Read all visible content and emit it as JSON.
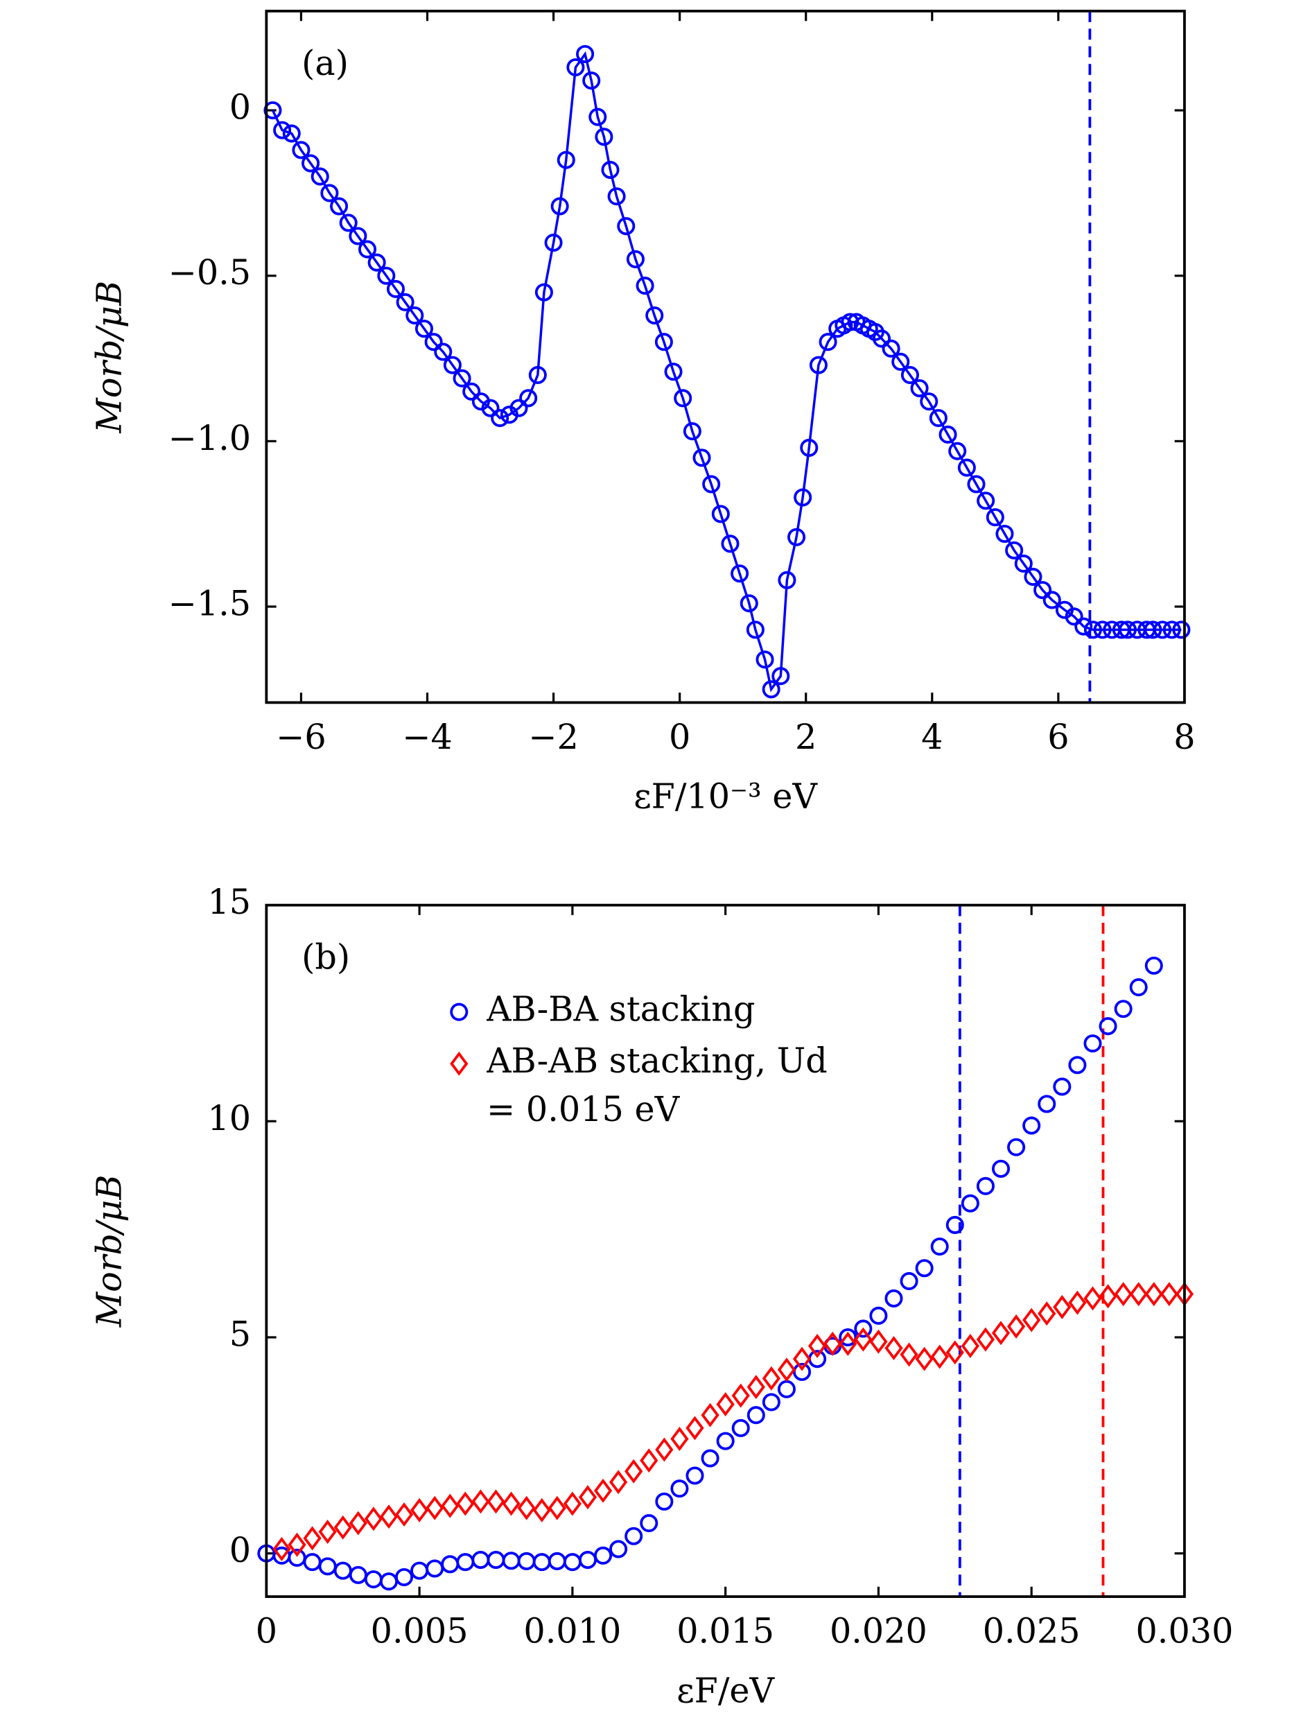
{
  "chart_data": [
    {
      "type": "line",
      "panel_label": "(a)",
      "xlabel": "εF/10⁻³ eV",
      "ylabel": "Morb/μB",
      "xlim": [
        -6.55,
        8
      ],
      "ylim": [
        -1.79,
        0.3
      ],
      "xticks": [
        {
          "value": -6,
          "label": "−6"
        },
        {
          "value": -4,
          "label": "−4"
        },
        {
          "value": -2,
          "label": "−2"
        },
        0,
        2,
        4,
        6,
        8
      ],
      "yticks": [
        0,
        {
          "value": -0.5,
          "label": "−0.5"
        },
        {
          "value": -1,
          "label": "−1.0"
        },
        {
          "value": -1.5,
          "label": "−1.5"
        }
      ],
      "vlines": [
        {
          "x": 6.5,
          "color": "#0000ff"
        }
      ],
      "series": [
        {
          "color": "#0000ff",
          "marker": "o",
          "line": true,
          "x": [
            -6.45,
            -6.3,
            -6.15,
            -6.0,
            -5.85,
            -5.7,
            -5.55,
            -5.4,
            -5.25,
            -5.1,
            -4.95,
            -4.8,
            -4.65,
            -4.5,
            -4.35,
            -4.2,
            -4.05,
            -3.9,
            -3.75,
            -3.6,
            -3.45,
            -3.3,
            -3.15,
            -3.0,
            -2.85,
            -2.7,
            -2.55,
            -2.4,
            -2.25,
            -2.15,
            -2.0,
            -1.9,
            -1.8,
            -1.65,
            -1.5,
            -1.4,
            -1.3,
            -1.2,
            -1.1,
            -1.0,
            -0.85,
            -0.7,
            -0.55,
            -0.4,
            -0.25,
            -0.1,
            0.05,
            0.2,
            0.35,
            0.5,
            0.65,
            0.8,
            0.95,
            1.1,
            1.2,
            1.35,
            1.45,
            1.6,
            1.7,
            1.85,
            1.95,
            2.05,
            2.2,
            2.35,
            2.5,
            2.6,
            2.7,
            2.8,
            2.9,
            3.0,
            3.1,
            3.2,
            3.35,
            3.5,
            3.65,
            3.8,
            3.95,
            4.1,
            4.25,
            4.4,
            4.55,
            4.7,
            4.85,
            5.0,
            5.15,
            5.3,
            5.45,
            5.6,
            5.75,
            5.9,
            6.1,
            6.25,
            6.4,
            6.55,
            6.7,
            6.85,
            7.0,
            7.1,
            7.25,
            7.4,
            7.5,
            7.65,
            7.8,
            7.95
          ],
          "values": [
            0.0,
            -0.06,
            -0.07,
            -0.12,
            -0.16,
            -0.2,
            -0.25,
            -0.29,
            -0.34,
            -0.38,
            -0.42,
            -0.46,
            -0.5,
            -0.54,
            -0.58,
            -0.62,
            -0.66,
            -0.7,
            -0.73,
            -0.77,
            -0.81,
            -0.85,
            -0.88,
            -0.9,
            -0.93,
            -0.92,
            -0.9,
            -0.87,
            -0.8,
            -0.55,
            -0.4,
            -0.29,
            -0.15,
            0.13,
            0.17,
            0.09,
            -0.02,
            -0.08,
            -0.18,
            -0.26,
            -0.35,
            -0.45,
            -0.53,
            -0.62,
            -0.7,
            -0.79,
            -0.87,
            -0.97,
            -1.05,
            -1.13,
            -1.22,
            -1.31,
            -1.4,
            -1.49,
            -1.57,
            -1.66,
            -1.75,
            -1.71,
            -1.42,
            -1.29,
            -1.17,
            -1.02,
            -0.77,
            -0.7,
            -0.66,
            -0.65,
            -0.64,
            -0.64,
            -0.65,
            -0.66,
            -0.67,
            -0.69,
            -0.72,
            -0.76,
            -0.8,
            -0.84,
            -0.88,
            -0.93,
            -0.98,
            -1.03,
            -1.08,
            -1.13,
            -1.18,
            -1.23,
            -1.28,
            -1.33,
            -1.37,
            -1.41,
            -1.45,
            -1.48,
            -1.51,
            -1.53,
            -1.56,
            -1.57,
            -1.57,
            -1.57,
            -1.57,
            -1.57,
            -1.57,
            -1.57,
            -1.57,
            -1.57,
            -1.57,
            -1.57
          ]
        }
      ]
    },
    {
      "type": "scatter",
      "panel_label": "(b)",
      "xlabel": "εF/eV",
      "ylabel": "Morb/μB",
      "xlim": [
        0,
        0.03
      ],
      "ylim": [
        -1,
        15
      ],
      "xticks": [
        0,
        0.005,
        {
          "value": 0.01,
          "label": "0.010"
        },
        0.015,
        {
          "value": 0.02,
          "label": "0.020"
        },
        0.025,
        {
          "value": 0.03,
          "label": "0.030"
        }
      ],
      "yticks": [
        0,
        5,
        10,
        15
      ],
      "vlines": [
        {
          "x": 0.02266,
          "color": "#0000ff"
        },
        {
          "x": 0.02734,
          "color": "#ff0000"
        }
      ],
      "series": [
        {
          "name": "AB-BA stacking",
          "color": "#0000ff",
          "marker": "o",
          "x": [
            0,
            0.0005,
            0.001,
            0.0015,
            0.002,
            0.0025,
            0.003,
            0.0035,
            0.004,
            0.0045,
            0.005,
            0.0055,
            0.006,
            0.0065,
            0.007,
            0.0075,
            0.008,
            0.0085,
            0.009,
            0.0095,
            0.01,
            0.0105,
            0.011,
            0.0115,
            0.012,
            0.0125,
            0.013,
            0.0135,
            0.014,
            0.0145,
            0.015,
            0.0155,
            0.016,
            0.0165,
            0.017,
            0.0175,
            0.018,
            0.0185,
            0.019,
            0.0195,
            0.02,
            0.0205,
            0.021,
            0.0215,
            0.022,
            0.0225,
            0.023,
            0.0235,
            0.024,
            0.0245,
            0.025,
            0.0255,
            0.026,
            0.0265,
            0.027,
            0.0275,
            0.028,
            0.0285,
            0.029
          ],
          "values": [
            0,
            -0.05,
            -0.1,
            -0.2,
            -0.3,
            -0.4,
            -0.5,
            -0.6,
            -0.65,
            -0.55,
            -0.4,
            -0.35,
            -0.25,
            -0.2,
            -0.15,
            -0.15,
            -0.17,
            -0.18,
            -0.2,
            -0.18,
            -0.2,
            -0.15,
            -0.05,
            0.1,
            0.4,
            0.7,
            1.2,
            1.5,
            1.8,
            2.2,
            2.6,
            2.9,
            3.2,
            3.5,
            3.8,
            4.2,
            4.5,
            4.8,
            5.0,
            5.2,
            5.5,
            5.9,
            6.3,
            6.6,
            7.1,
            7.6,
            8.1,
            8.5,
            8.9,
            9.4,
            9.9,
            10.4,
            10.8,
            11.3,
            11.8,
            12.2,
            12.6,
            13.1,
            13.6
          ]
        },
        {
          "name": "AB-AB stacking, Ud = 0.015 eV",
          "color": "#ff0000",
          "marker": "D",
          "x": [
            0.0005,
            0.001,
            0.0015,
            0.002,
            0.0025,
            0.003,
            0.0035,
            0.004,
            0.0045,
            0.005,
            0.0055,
            0.006,
            0.0065,
            0.007,
            0.0075,
            0.008,
            0.0085,
            0.009,
            0.0095,
            0.01,
            0.0105,
            0.011,
            0.0115,
            0.012,
            0.0125,
            0.013,
            0.0135,
            0.014,
            0.0145,
            0.015,
            0.0155,
            0.016,
            0.0165,
            0.017,
            0.0175,
            0.018,
            0.0185,
            0.019,
            0.0195,
            0.02,
            0.0205,
            0.021,
            0.0215,
            0.022,
            0.0225,
            0.023,
            0.0235,
            0.024,
            0.0245,
            0.025,
            0.0255,
            0.026,
            0.0265,
            0.027,
            0.0275,
            0.028,
            0.0285,
            0.029,
            0.0295,
            0.03
          ],
          "values": [
            0.1,
            0.2,
            0.35,
            0.5,
            0.6,
            0.7,
            0.8,
            0.85,
            0.9,
            1.0,
            1.05,
            1.1,
            1.15,
            1.2,
            1.2,
            1.15,
            1.05,
            1.0,
            1.05,
            1.15,
            1.3,
            1.45,
            1.65,
            1.9,
            2.15,
            2.4,
            2.65,
            2.9,
            3.2,
            3.45,
            3.65,
            3.85,
            4.05,
            4.25,
            4.5,
            4.8,
            4.85,
            4.85,
            4.95,
            4.9,
            4.75,
            4.6,
            4.5,
            4.55,
            4.65,
            4.8,
            4.95,
            5.1,
            5.25,
            5.4,
            5.55,
            5.7,
            5.8,
            5.9,
            5.95,
            6.0,
            6.0,
            6.0,
            6.0,
            6.0
          ]
        }
      ]
    }
  ]
}
